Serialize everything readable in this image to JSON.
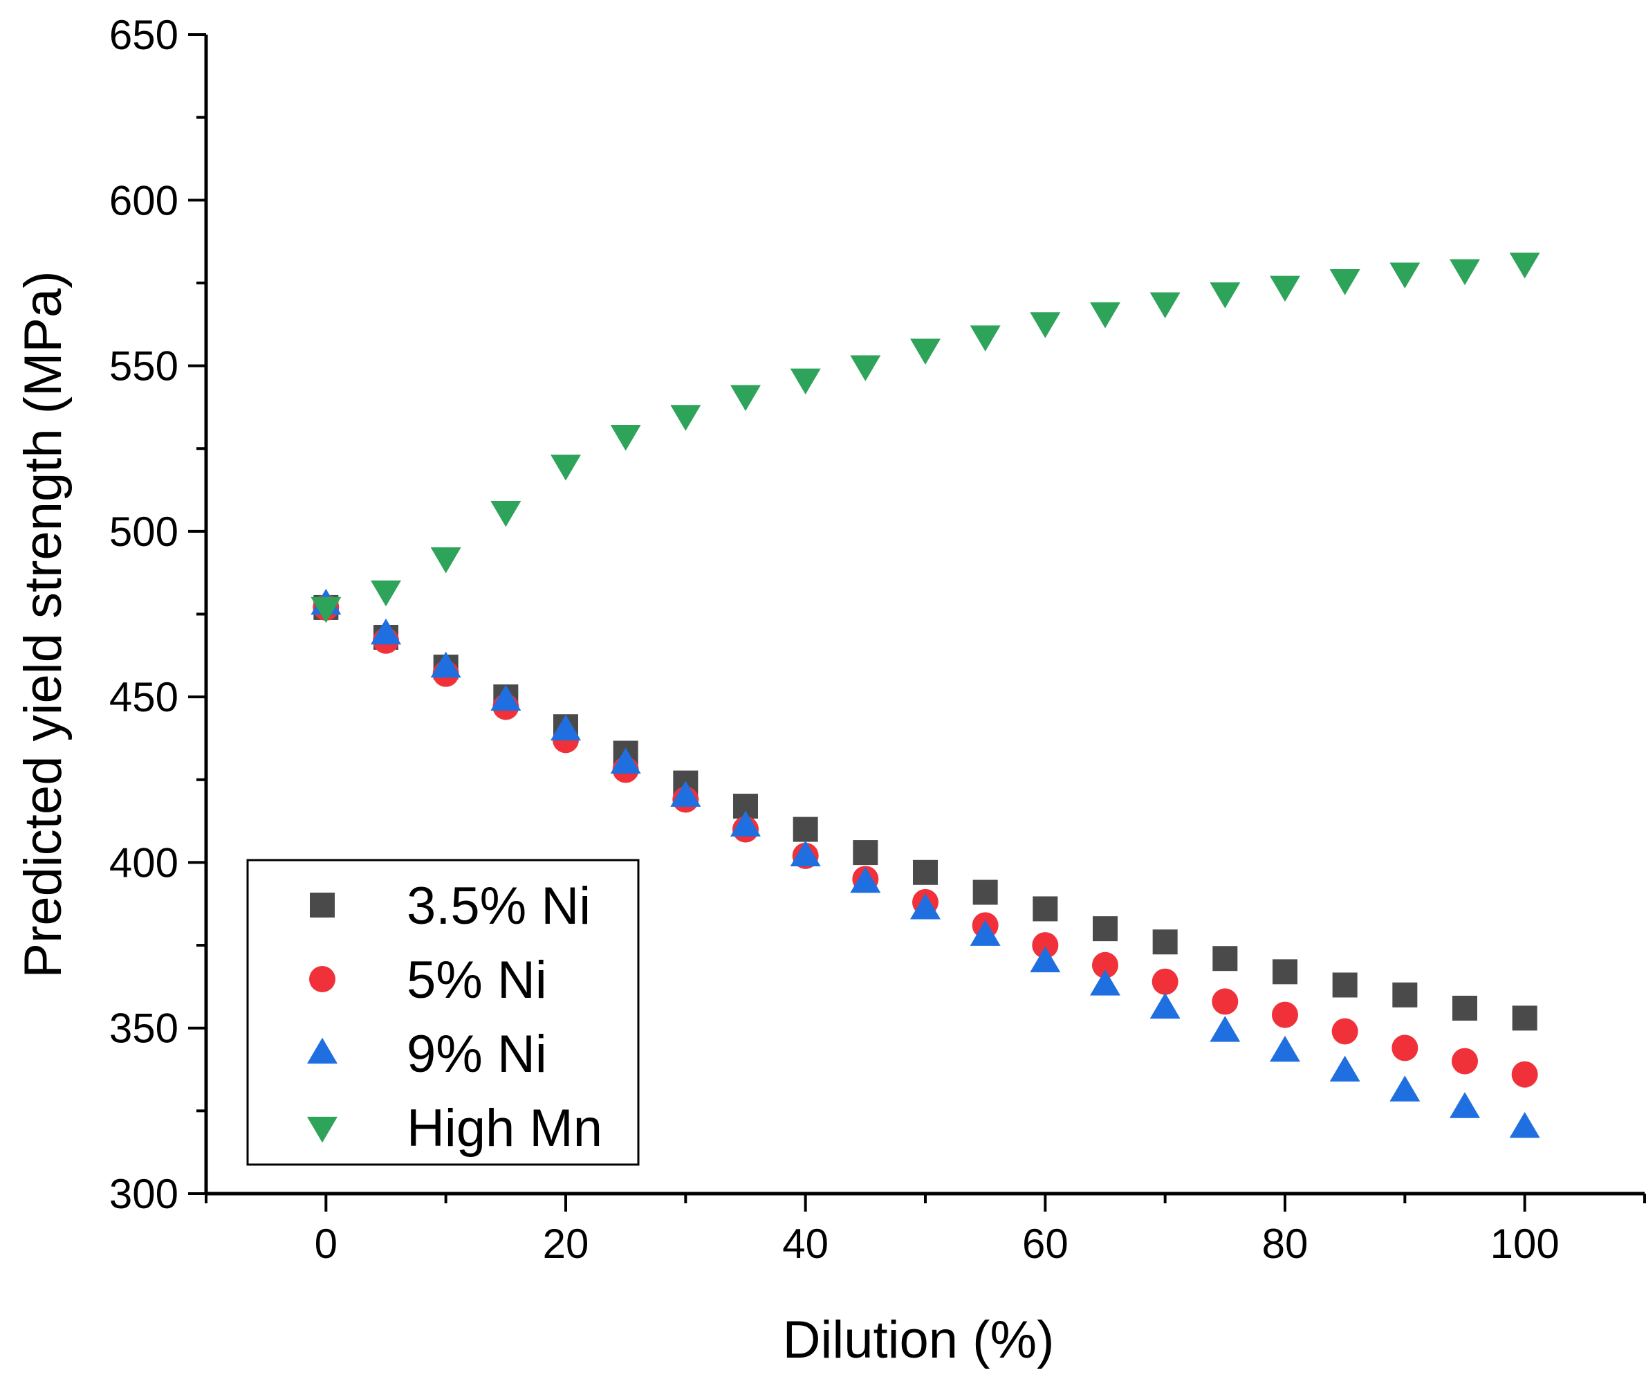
{
  "chart_data": {
    "type": "scatter",
    "title": "",
    "xlabel": "Dilution (%)",
    "ylabel": "Predicted yield strength (MPa)",
    "xlim": [
      -10,
      110
    ],
    "ylim": [
      300,
      650
    ],
    "xticks": [
      0,
      20,
      40,
      60,
      80,
      100
    ],
    "yticks": [
      300,
      350,
      400,
      450,
      500,
      550,
      600,
      650
    ],
    "grid": false,
    "legend_position": "bottom-left",
    "x": [
      0,
      5,
      10,
      15,
      20,
      25,
      30,
      35,
      40,
      45,
      50,
      55,
      60,
      65,
      70,
      75,
      80,
      85,
      90,
      95,
      100
    ],
    "series": [
      {
        "name": "3.5% Ni",
        "marker": "square",
        "color": "#4a4a4a",
        "values": [
          477,
          468,
          459,
          450,
          441,
          433,
          424,
          417,
          410,
          403,
          397,
          391,
          386,
          380,
          376,
          371,
          367,
          363,
          360,
          356,
          353
        ]
      },
      {
        "name": "5% Ni",
        "marker": "circle",
        "color": "#f0313a",
        "values": [
          477,
          467,
          457,
          447,
          437,
          428,
          419,
          410,
          402,
          395,
          388,
          381,
          375,
          369,
          364,
          358,
          354,
          349,
          344,
          340,
          336
        ]
      },
      {
        "name": "9% Ni",
        "marker": "triangle-up",
        "color": "#1f6fe0",
        "values": [
          478,
          469,
          459,
          449,
          440,
          430,
          420,
          411,
          402,
          394,
          386,
          378,
          370,
          363,
          356,
          349,
          343,
          337,
          331,
          326,
          320
        ]
      },
      {
        "name": "High Mn",
        "marker": "triangle-down",
        "color": "#2ea35a",
        "values": [
          477,
          482,
          492,
          506,
          520,
          529,
          535,
          541,
          546,
          550,
          555,
          559,
          563,
          566,
          569,
          572,
          574,
          576,
          578,
          579,
          581
        ]
      }
    ]
  }
}
